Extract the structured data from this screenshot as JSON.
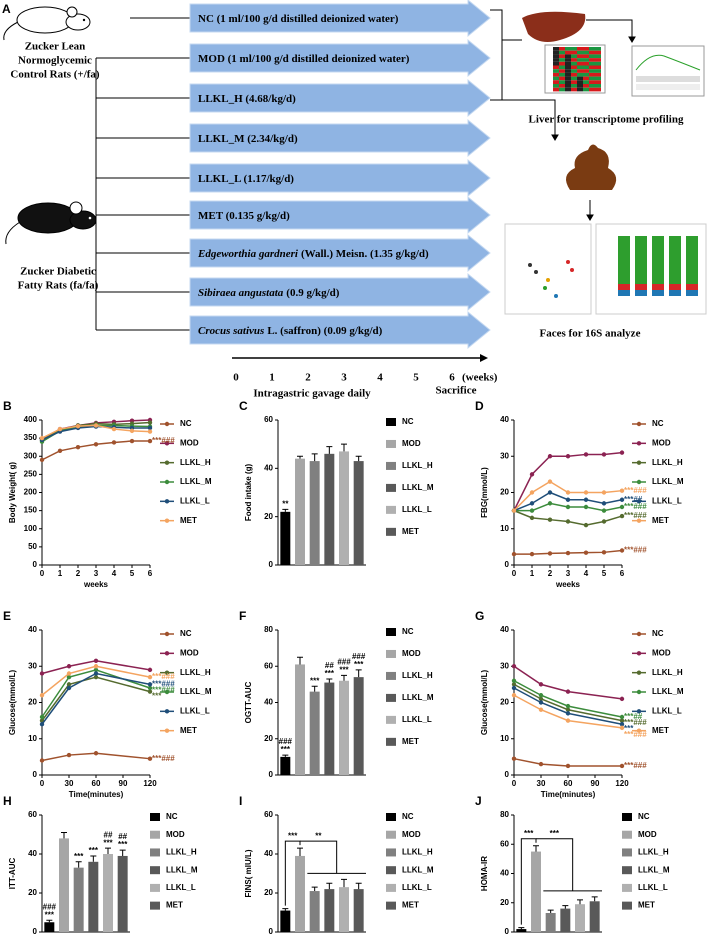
{
  "diagram": {
    "panel": "A",
    "control_group": [
      "Zucker Lean",
      "Normoglycemic",
      "Control Rats (+/fa)"
    ],
    "model_group": [
      "Zucker Diabetic",
      "Fatty Rats (fa/fa)"
    ],
    "groups": [
      {
        "label": "NC (1 ml/100 g/d distilled deionized water)"
      },
      {
        "label": "MOD (1 ml/100 g/d distilled deionized water)"
      },
      {
        "label": "LLKL_H (4.68/kg/d)"
      },
      {
        "label": "LLKL_M (2.34/kg/d)"
      },
      {
        "label": "LLKL_L (1.17/kg/d)"
      },
      {
        "label": "MET (0.135 g/kg/d)"
      },
      {
        "italic": "Edgeworthia gardneri",
        "label": "(Wall.) Meisn. (1.35 g/kg/d)"
      },
      {
        "italic": "Sibiraea angustata",
        "label": "(0.9 g/kg/d)"
      },
      {
        "italic": "Crocus sativus",
        "label": "L. (saffron) (0.09 g/kg/d)"
      }
    ],
    "liver_label": "Liver for transcriptome profiling",
    "feces_label": "Faces for 16S analyze",
    "timeline": {
      "ticks": [
        0,
        1,
        2,
        3,
        4,
        5,
        6
      ],
      "unit": "(weeks)",
      "caption": "Intragastric gavage daily",
      "end": "Sacrifice"
    }
  },
  "chart_data": [
    {
      "panel": "B",
      "type": "line",
      "ylabel": "Body Weight( g)",
      "xlabel": "weeks",
      "x": [
        0,
        1,
        2,
        3,
        4,
        5,
        6
      ],
      "xlim": [
        0,
        6
      ],
      "xticks": [
        0,
        1,
        2,
        3,
        4,
        5,
        6
      ],
      "ylim": [
        0,
        400
      ],
      "yticks": [
        0,
        50,
        100,
        150,
        200,
        250,
        300,
        350,
        400
      ],
      "series": [
        {
          "name": "NC",
          "color": "#a0522d",
          "values": [
            290,
            315,
            325,
            333,
            338,
            342,
            342
          ],
          "annotation": "***###"
        },
        {
          "name": "MOD",
          "color": "#8b2252",
          "values": [
            345,
            375,
            385,
            392,
            395,
            398,
            400
          ]
        },
        {
          "name": "LLKL_H",
          "color": "#556b2f",
          "values": [
            345,
            372,
            385,
            390,
            388,
            390,
            393
          ]
        },
        {
          "name": "LLKL_M",
          "color": "#3c8c3c",
          "values": [
            340,
            370,
            380,
            385,
            385,
            383,
            382
          ]
        },
        {
          "name": "LLKL_L",
          "color": "#1f4e79",
          "values": [
            345,
            368,
            378,
            382,
            380,
            378,
            378
          ]
        },
        {
          "name": "MET",
          "color": "#f4a460",
          "values": [
            350,
            375,
            383,
            385,
            375,
            370,
            368
          ]
        }
      ]
    },
    {
      "panel": "C",
      "type": "bar",
      "ylabel": "Food intake (g)",
      "categories": [
        "NC",
        "MOD",
        "LLKL_H",
        "LLKL_M",
        "LLKL_L",
        "MET"
      ],
      "values": [
        22,
        44,
        43,
        46,
        47,
        43
      ],
      "errors": [
        1,
        1,
        3,
        3,
        3,
        2
      ],
      "colors": [
        "#000000",
        "#a6a6a6",
        "#808080",
        "#595959",
        "#b0b0b0",
        "#595959"
      ],
      "annotations": [
        [
          "**"
        ],
        null,
        null,
        null,
        null,
        null
      ],
      "ylim": [
        0,
        60
      ],
      "yticks": [
        0,
        20,
        40,
        60
      ]
    },
    {
      "panel": "D",
      "type": "line",
      "ylabel": "FBG(mmol/L)",
      "xlabel": "weeks",
      "x": [
        0,
        1,
        2,
        3,
        4,
        5,
        6
      ],
      "xlim": [
        0,
        6
      ],
      "xticks": [
        0,
        1,
        2,
        3,
        4,
        5,
        6
      ],
      "ylim": [
        0,
        40
      ],
      "yticks": [
        0,
        10,
        20,
        30,
        40
      ],
      "series": [
        {
          "name": "NC",
          "color": "#a0522d",
          "values": [
            3,
            3,
            3.2,
            3.3,
            3.4,
            3.5,
            4
          ],
          "annotation": "***###"
        },
        {
          "name": "MOD",
          "color": "#8b2252",
          "values": [
            15,
            25,
            30,
            30,
            30.5,
            30.5,
            31
          ]
        },
        {
          "name": "LLKL_H",
          "color": "#556b2f",
          "values": [
            15,
            13,
            12.5,
            12,
            11,
            12,
            13.5
          ],
          "annotation": "***###"
        },
        {
          "name": "LLKL_M",
          "color": "#3c8c3c",
          "values": [
            15,
            15,
            17,
            16,
            16,
            15,
            16
          ],
          "annotation": "***###"
        },
        {
          "name": "LLKL_L",
          "color": "#1f4e79",
          "values": [
            15,
            17,
            20,
            18,
            18,
            17,
            18
          ],
          "annotation": "***##"
        },
        {
          "name": "MET",
          "color": "#f4a460",
          "values": [
            15,
            20,
            23,
            20,
            20,
            20,
            20.5
          ],
          "annotation": "***###"
        }
      ]
    },
    {
      "panel": "E",
      "type": "line",
      "ylabel": "Glucose(mmol/L)",
      "xlabel": "Time(minutes)",
      "x": [
        0,
        30,
        60,
        120
      ],
      "xlim": [
        0,
        120
      ],
      "xticks": [
        0,
        30,
        60,
        90,
        120
      ],
      "ylim": [
        0,
        40
      ],
      "yticks": [
        0,
        10,
        20,
        30,
        40
      ],
      "series": [
        {
          "name": "NC",
          "color": "#a0522d",
          "values": [
            4,
            5.5,
            6,
            4.5
          ],
          "annotation": "***###"
        },
        {
          "name": "MOD",
          "color": "#8b2252",
          "values": [
            28,
            30,
            31.5,
            29
          ]
        },
        {
          "name": "LLKL_H",
          "color": "#556b2f",
          "values": [
            15,
            25,
            27,
            23
          ],
          "annotation": "***"
        },
        {
          "name": "LLKL_M",
          "color": "#3c8c3c",
          "values": [
            16,
            27,
            29,
            24
          ],
          "annotation": "***###"
        },
        {
          "name": "LLKL_L",
          "color": "#1f4e79",
          "values": [
            14,
            24,
            28,
            25
          ],
          "annotation": "***###"
        },
        {
          "name": "MET",
          "color": "#f4a460",
          "values": [
            22,
            28,
            30,
            27
          ],
          "annotation": "***###"
        }
      ]
    },
    {
      "panel": "F",
      "type": "bar",
      "ylabel": "OGTT-AUC",
      "categories": [
        "NC",
        "MOD",
        "LLKL_H",
        "LLKL_M",
        "LLKL_L",
        "MET"
      ],
      "values": [
        10,
        61,
        46,
        51,
        52,
        54
      ],
      "errors": [
        1,
        4,
        3,
        2,
        3,
        4
      ],
      "colors": [
        "#000000",
        "#a6a6a6",
        "#808080",
        "#595959",
        "#b0b0b0",
        "#595959"
      ],
      "annotations": [
        [
          "###",
          "***"
        ],
        null,
        [
          "***"
        ],
        [
          "##",
          "***"
        ],
        [
          "###",
          "***"
        ],
        [
          "###",
          "***"
        ]
      ],
      "ylim": [
        0,
        80
      ],
      "yticks": [
        0,
        20,
        40,
        60,
        80
      ]
    },
    {
      "panel": "G",
      "type": "line",
      "ylabel": "Glucose(mmol/L)",
      "xlabel": "Time(minutes)",
      "x": [
        0,
        30,
        60,
        120
      ],
      "xlim": [
        0,
        120
      ],
      "xticks": [
        0,
        30,
        60,
        90,
        120
      ],
      "ylim": [
        0,
        40
      ],
      "yticks": [
        0,
        10,
        20,
        30,
        40
      ],
      "series": [
        {
          "name": "NC",
          "color": "#a0522d",
          "values": [
            4.5,
            3,
            2.5,
            2.5
          ],
          "annotation": "***###"
        },
        {
          "name": "MOD",
          "color": "#8b2252",
          "values": [
            30,
            25,
            23,
            21
          ]
        },
        {
          "name": "LLKL_H",
          "color": "#556b2f",
          "values": [
            25,
            21,
            18,
            15
          ],
          "annotation": "***###"
        },
        {
          "name": "LLKL_M",
          "color": "#3c8c3c",
          "values": [
            26,
            22,
            19,
            16
          ],
          "annotation": "***##"
        },
        {
          "name": "LLKL_L",
          "color": "#1f4e79",
          "values": [
            24,
            20,
            17,
            14
          ],
          "annotation": "***"
        },
        {
          "name": "MET",
          "color": "#f4a460",
          "values": [
            22,
            18,
            15,
            13
          ],
          "annotation": "***###"
        }
      ]
    },
    {
      "panel": "H",
      "type": "bar",
      "ylabel": "ITT-AUC",
      "categories": [
        "NC",
        "MOD",
        "LLKL_H",
        "LLKL_M",
        "LLKL_L",
        "MET"
      ],
      "values": [
        5,
        48,
        33,
        36,
        40,
        39
      ],
      "errors": [
        1,
        3,
        3,
        3,
        3,
        3
      ],
      "colors": [
        "#000000",
        "#a6a6a6",
        "#808080",
        "#595959",
        "#b0b0b0",
        "#595959"
      ],
      "annotations": [
        [
          "###",
          "***"
        ],
        null,
        [
          "***"
        ],
        [
          "***"
        ],
        [
          "##",
          "***"
        ],
        [
          "##",
          "***"
        ]
      ],
      "ylim": [
        0,
        60
      ],
      "yticks": [
        0,
        20,
        40,
        60
      ]
    },
    {
      "panel": "I",
      "type": "bar",
      "ylabel": "FINS( mIU/L)",
      "categories": [
        "NC",
        "MOD",
        "LLKL_H",
        "LLKL_M",
        "LLKL_L",
        "MET"
      ],
      "values": [
        11,
        39,
        21,
        22,
        23,
        22
      ],
      "errors": [
        1,
        4,
        2,
        3,
        4,
        3
      ],
      "colors": [
        "#000000",
        "#a6a6a6",
        "#808080",
        "#595959",
        "#b0b0b0",
        "#595959"
      ],
      "brackets": [
        "***",
        "**"
      ],
      "ylim": [
        0,
        60
      ],
      "yticks": [
        0,
        20,
        40,
        60
      ]
    },
    {
      "panel": "J",
      "type": "bar",
      "ylabel": "HOMA-IR",
      "categories": [
        "NC",
        "MOD",
        "LLKL_H",
        "LLKL_M",
        "LLKL_L",
        "MET"
      ],
      "values": [
        2,
        55,
        13,
        16,
        19,
        21
      ],
      "errors": [
        1,
        4,
        2,
        2,
        3,
        3
      ],
      "colors": [
        "#000000",
        "#a6a6a6",
        "#808080",
        "#595959",
        "#b0b0b0",
        "#595959"
      ],
      "brackets": [
        "***",
        "***"
      ],
      "ylim": [
        0,
        80
      ],
      "yticks": [
        0,
        20,
        40,
        60,
        80
      ]
    }
  ]
}
